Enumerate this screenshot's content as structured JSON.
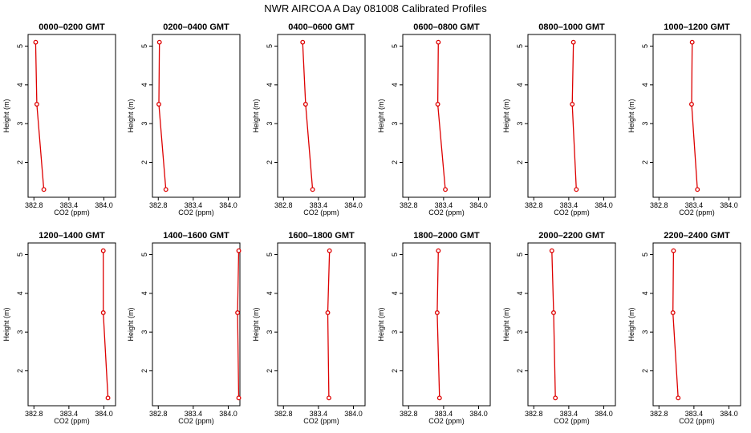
{
  "figure": {
    "title": "NWR AIRCOA A  Day 081008  Calibrated Profiles"
  },
  "colors": {
    "series": "#dd0000",
    "axis": "#000000",
    "background": "#ffffff"
  },
  "chart_data": [
    {
      "type": "line",
      "title": "0000–0200 GMT",
      "xlabel": "CO2 (ppm)",
      "ylabel": "Height (m)",
      "xlim": [
        382.7,
        384.2
      ],
      "ylim": [
        1.1,
        5.3
      ],
      "xticks": [
        382.8,
        383.4,
        384.0
      ],
      "xtick_labels": [
        "382.8",
        "383.4",
        "384.0"
      ],
      "yticks": [
        2,
        3,
        4,
        5
      ],
      "ytick_labels": [
        "2",
        "3",
        "4",
        "5"
      ],
      "grid": false,
      "x": [
        382.83,
        382.85,
        382.97
      ],
      "y": [
        5.1,
        3.5,
        1.3
      ]
    },
    {
      "type": "line",
      "title": "0200–0400 GMT",
      "xlabel": "CO2 (ppm)",
      "ylabel": "Height (m)",
      "xlim": [
        382.7,
        384.2
      ],
      "ylim": [
        1.1,
        5.3
      ],
      "xticks": [
        382.8,
        383.4,
        384.0
      ],
      "xtick_labels": [
        "382.8",
        "383.4",
        "384.0"
      ],
      "yticks": [
        2,
        3,
        4,
        5
      ],
      "ytick_labels": [
        "2",
        "3",
        "4",
        "5"
      ],
      "grid": false,
      "x": [
        382.82,
        382.81,
        382.93
      ],
      "y": [
        5.1,
        3.5,
        1.3
      ]
    },
    {
      "type": "line",
      "title": "0400–0600 GMT",
      "xlabel": "CO2 (ppm)",
      "ylabel": "Height (m)",
      "xlim": [
        382.7,
        384.2
      ],
      "ylim": [
        1.1,
        5.3
      ],
      "xticks": [
        382.8,
        383.4,
        384.0
      ],
      "xtick_labels": [
        "382.8",
        "383.4",
        "384.0"
      ],
      "yticks": [
        2,
        3,
        4,
        5
      ],
      "ytick_labels": [
        "2",
        "3",
        "4",
        "5"
      ],
      "grid": false,
      "x": [
        383.13,
        383.18,
        383.3
      ],
      "y": [
        5.1,
        3.5,
        1.3
      ]
    },
    {
      "type": "line",
      "title": "0600–0800 GMT",
      "xlabel": "CO2 (ppm)",
      "ylabel": "Height (m)",
      "xlim": [
        382.7,
        384.2
      ],
      "ylim": [
        1.1,
        5.3
      ],
      "xticks": [
        382.8,
        383.4,
        384.0
      ],
      "xtick_labels": [
        "382.8",
        "383.4",
        "384.0"
      ],
      "yticks": [
        2,
        3,
        4,
        5
      ],
      "ytick_labels": [
        "2",
        "3",
        "4",
        "5"
      ],
      "grid": false,
      "x": [
        383.31,
        383.3,
        383.43
      ],
      "y": [
        5.1,
        3.5,
        1.3
      ]
    },
    {
      "type": "line",
      "title": "0800–1000 GMT",
      "xlabel": "CO2 (ppm)",
      "ylabel": "Height (m)",
      "xlim": [
        382.7,
        384.2
      ],
      "ylim": [
        1.1,
        5.3
      ],
      "xticks": [
        382.8,
        383.4,
        384.0
      ],
      "xtick_labels": [
        "382.8",
        "383.4",
        "384.0"
      ],
      "yticks": [
        2,
        3,
        4,
        5
      ],
      "ytick_labels": [
        "2",
        "3",
        "4",
        "5"
      ],
      "grid": false,
      "x": [
        383.48,
        383.46,
        383.53
      ],
      "y": [
        5.1,
        3.5,
        1.3
      ]
    },
    {
      "type": "line",
      "title": "1000–1200 GMT",
      "xlabel": "CO2 (ppm)",
      "ylabel": "Height (m)",
      "xlim": [
        382.7,
        384.2
      ],
      "ylim": [
        1.1,
        5.3
      ],
      "xticks": [
        382.8,
        383.4,
        384.0
      ],
      "xtick_labels": [
        "382.8",
        "383.4",
        "384.0"
      ],
      "yticks": [
        2,
        3,
        4,
        5
      ],
      "ytick_labels": [
        "2",
        "3",
        "4",
        "5"
      ],
      "grid": false,
      "x": [
        383.37,
        383.36,
        383.46
      ],
      "y": [
        5.1,
        3.5,
        1.3
      ]
    },
    {
      "type": "line",
      "title": "1200–1400 GMT",
      "xlabel": "CO2 (ppm)",
      "ylabel": "Height (m)",
      "xlim": [
        382.7,
        384.2
      ],
      "ylim": [
        1.1,
        5.3
      ],
      "xticks": [
        382.8,
        383.4,
        384.0
      ],
      "xtick_labels": [
        "382.8",
        "383.4",
        "384.0"
      ],
      "yticks": [
        2,
        3,
        4,
        5
      ],
      "ytick_labels": [
        "2",
        "3",
        "4",
        "5"
      ],
      "grid": false,
      "x": [
        383.99,
        383.99,
        384.07
      ],
      "y": [
        5.1,
        3.5,
        1.3
      ]
    },
    {
      "type": "line",
      "title": "1400–1600 GMT",
      "xlabel": "CO2 (ppm)",
      "ylabel": "Height (m)",
      "xlim": [
        382.7,
        384.2
      ],
      "ylim": [
        1.1,
        5.3
      ],
      "xticks": [
        382.8,
        383.4,
        384.0
      ],
      "xtick_labels": [
        "382.8",
        "383.4",
        "384.0"
      ],
      "yticks": [
        2,
        3,
        4,
        5
      ],
      "ytick_labels": [
        "2",
        "3",
        "4",
        "5"
      ],
      "grid": false,
      "x": [
        384.18,
        384.16,
        384.18
      ],
      "y": [
        5.1,
        3.5,
        1.3
      ]
    },
    {
      "type": "line",
      "title": "1600–1800 GMT",
      "xlabel": "CO2 (ppm)",
      "ylabel": "Height (m)",
      "xlim": [
        382.7,
        384.2
      ],
      "ylim": [
        1.1,
        5.3
      ],
      "xticks": [
        382.8,
        383.4,
        384.0
      ],
      "xtick_labels": [
        "382.8",
        "383.4",
        "384.0"
      ],
      "yticks": [
        2,
        3,
        4,
        5
      ],
      "ytick_labels": [
        "2",
        "3",
        "4",
        "5"
      ],
      "grid": false,
      "x": [
        383.59,
        383.56,
        383.58
      ],
      "y": [
        5.1,
        3.5,
        1.3
      ]
    },
    {
      "type": "line",
      "title": "1800–2000 GMT",
      "xlabel": "CO2 (ppm)",
      "ylabel": "Height (m)",
      "xlim": [
        382.7,
        384.2
      ],
      "ylim": [
        1.1,
        5.3
      ],
      "xticks": [
        382.8,
        383.4,
        384.0
      ],
      "xtick_labels": [
        "382.8",
        "383.4",
        "384.0"
      ],
      "yticks": [
        2,
        3,
        4,
        5
      ],
      "ytick_labels": [
        "2",
        "3",
        "4",
        "5"
      ],
      "grid": false,
      "x": [
        383.31,
        383.29,
        383.33
      ],
      "y": [
        5.1,
        3.5,
        1.3
      ]
    },
    {
      "type": "line",
      "title": "2000–2200 GMT",
      "xlabel": "CO2 (ppm)",
      "ylabel": "Height (m)",
      "xlim": [
        382.7,
        384.2
      ],
      "ylim": [
        1.1,
        5.3
      ],
      "xticks": [
        382.8,
        383.4,
        384.0
      ],
      "xtick_labels": [
        "382.8",
        "383.4",
        "384.0"
      ],
      "yticks": [
        2,
        3,
        4,
        5
      ],
      "ytick_labels": [
        "2",
        "3",
        "4",
        "5"
      ],
      "grid": false,
      "x": [
        383.11,
        383.14,
        383.17
      ],
      "y": [
        5.1,
        3.5,
        1.3
      ]
    },
    {
      "type": "line",
      "title": "2200–2400 GMT",
      "xlabel": "CO2 (ppm)",
      "ylabel": "Height (m)",
      "xlim": [
        382.7,
        384.2
      ],
      "ylim": [
        1.1,
        5.3
      ],
      "xticks": [
        382.8,
        383.4,
        384.0
      ],
      "xtick_labels": [
        "382.8",
        "383.4",
        "384.0"
      ],
      "yticks": [
        2,
        3,
        4,
        5
      ],
      "ytick_labels": [
        "2",
        "3",
        "4",
        "5"
      ],
      "grid": false,
      "x": [
        383.05,
        383.04,
        383.13
      ],
      "y": [
        5.1,
        3.5,
        1.3
      ]
    }
  ]
}
